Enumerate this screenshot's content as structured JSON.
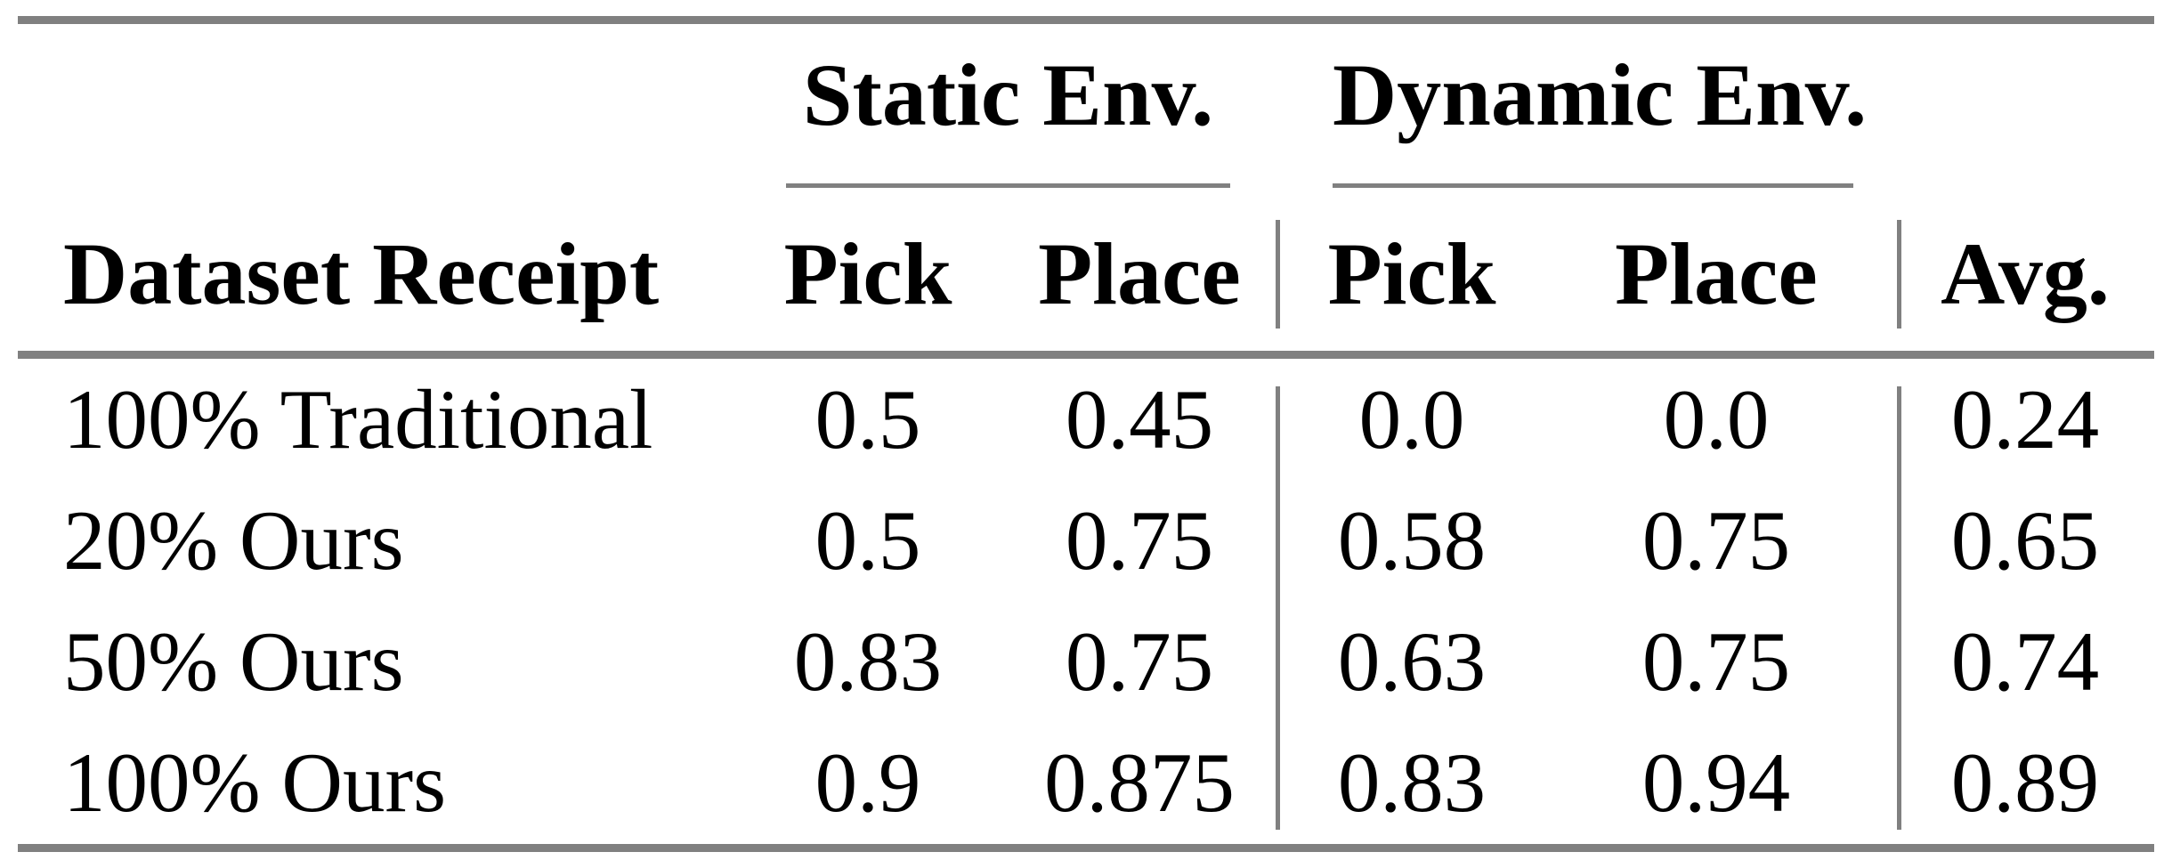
{
  "table": {
    "group_headers": {
      "static": "Static Env.",
      "dynamic": "Dynamic Env."
    },
    "column_headers": {
      "row_label": "Dataset Receipt",
      "static_pick": "Pick",
      "static_place": "Place",
      "dynamic_pick": "Pick",
      "dynamic_place": "Place",
      "avg": "Avg."
    },
    "rows": [
      {
        "label": "100% Traditional",
        "static_pick": "0.5",
        "static_place": "0.45",
        "dynamic_pick": "0.0",
        "dynamic_place": "0.0",
        "avg": "0.24"
      },
      {
        "label": "20% Ours",
        "static_pick": "0.5",
        "static_place": "0.75",
        "dynamic_pick": "0.58",
        "dynamic_place": "0.75",
        "avg": "0.65"
      },
      {
        "label": "50% Ours",
        "static_pick": "0.83",
        "static_place": "0.75",
        "dynamic_pick": "0.63",
        "dynamic_place": "0.75",
        "avg": "0.74"
      },
      {
        "label": "100% Ours",
        "static_pick": "0.9",
        "static_place": "0.875",
        "dynamic_pick": "0.83",
        "dynamic_place": "0.94",
        "avg": "0.89"
      }
    ],
    "colors": {
      "rule_gray": "#808080",
      "text": "#000000",
      "background": "#ffffff"
    }
  },
  "chart_data": {
    "type": "table",
    "title": "",
    "columns": [
      "Dataset Receipt",
      "Static Env. Pick",
      "Static Env. Place",
      "Dynamic Env. Pick",
      "Dynamic Env. Place",
      "Avg."
    ],
    "rows": [
      [
        "100% Traditional",
        0.5,
        0.45,
        0.0,
        0.0,
        0.24
      ],
      [
        "20% Ours",
        0.5,
        0.75,
        0.58,
        0.75,
        0.65
      ],
      [
        "50% Ours",
        0.83,
        0.75,
        0.63,
        0.75,
        0.74
      ],
      [
        "100% Ours",
        0.9,
        0.875,
        0.83,
        0.94,
        0.89
      ]
    ]
  }
}
